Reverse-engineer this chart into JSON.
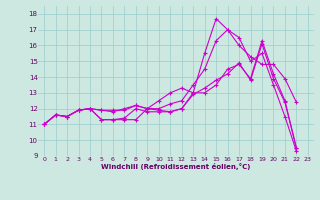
{
  "xlabel": "Windchill (Refroidissement éolien,°C)",
  "bg_color": "#cce8e0",
  "line_color": "#cc00cc",
  "grid_color": "#99cccc",
  "xlim": [
    -0.5,
    23.5
  ],
  "ylim": [
    9,
    18.5
  ],
  "xticks": [
    0,
    1,
    2,
    3,
    4,
    5,
    6,
    7,
    8,
    9,
    10,
    11,
    12,
    13,
    14,
    15,
    16,
    17,
    18,
    19,
    20,
    21,
    22,
    23
  ],
  "yticks": [
    9,
    10,
    11,
    12,
    13,
    14,
    15,
    16,
    17,
    18
  ],
  "line1_x": [
    0,
    1,
    2,
    3,
    4,
    5,
    6,
    7,
    8,
    9,
    10,
    11,
    12,
    13,
    14,
    15,
    16,
    17,
    18,
    19,
    20,
    21,
    22
  ],
  "line1_y": [
    11.0,
    11.6,
    11.5,
    11.9,
    12.0,
    11.9,
    11.8,
    12.0,
    12.2,
    12.0,
    11.9,
    11.8,
    12.0,
    13.0,
    13.0,
    13.5,
    14.5,
    14.8,
    13.9,
    16.3,
    14.2,
    12.5,
    9.5
  ],
  "line2_x": [
    0,
    1,
    2,
    3,
    4,
    5,
    6,
    7,
    8,
    9,
    10,
    11,
    12,
    13,
    14,
    15,
    16,
    17,
    18,
    19,
    20,
    21,
    22
  ],
  "line2_y": [
    11.0,
    11.6,
    11.5,
    11.9,
    12.0,
    11.3,
    11.3,
    11.3,
    11.3,
    12.0,
    12.5,
    13.0,
    13.3,
    13.0,
    15.5,
    17.7,
    17.0,
    16.0,
    15.3,
    14.8,
    14.8,
    13.9,
    12.4
  ],
  "line3_x": [
    0,
    1,
    2,
    3,
    4,
    5,
    6,
    7,
    8,
    9,
    10,
    11,
    12,
    13,
    14,
    15,
    16,
    17,
    18,
    19,
    20,
    21,
    22
  ],
  "line3_y": [
    11.0,
    11.6,
    11.5,
    11.9,
    12.0,
    11.3,
    11.3,
    11.4,
    12.0,
    11.8,
    11.8,
    11.8,
    12.0,
    12.9,
    13.3,
    13.8,
    14.2,
    14.9,
    13.8,
    16.1,
    13.9,
    12.4,
    9.5
  ],
  "line4_x": [
    0,
    1,
    2,
    3,
    4,
    5,
    6,
    7,
    8,
    9,
    10,
    11,
    12,
    13,
    14,
    15,
    16,
    17,
    18,
    19,
    20,
    21,
    22
  ],
  "line4_y": [
    11.0,
    11.6,
    11.5,
    11.9,
    12.0,
    11.9,
    11.9,
    11.9,
    12.2,
    12.0,
    12.0,
    12.3,
    12.5,
    13.5,
    14.5,
    16.3,
    17.0,
    16.5,
    15.0,
    15.5,
    13.5,
    11.5,
    9.3
  ]
}
